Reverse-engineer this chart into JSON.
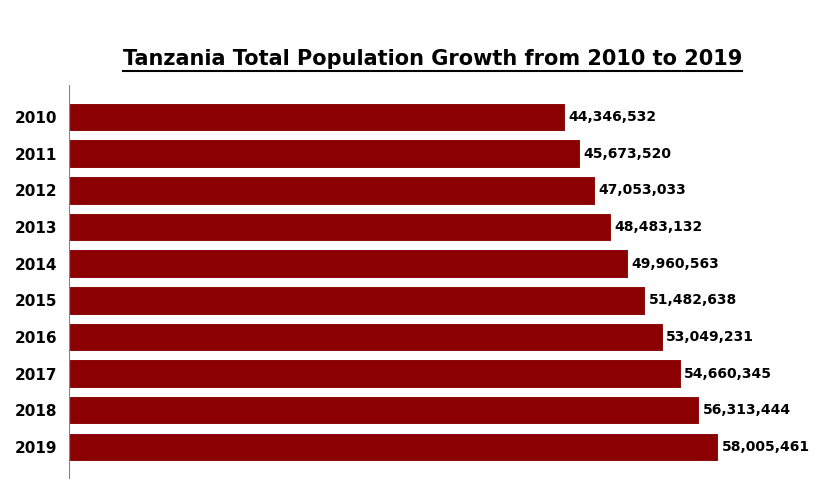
{
  "title": "Tanzania Total Population Growth from 2010 to 2019",
  "years": [
    "2010",
    "2011",
    "2012",
    "2013",
    "2014",
    "2015",
    "2016",
    "2017",
    "2018",
    "2019"
  ],
  "values": [
    44346532,
    45673520,
    47053033,
    48483132,
    49960563,
    51482638,
    53049231,
    54660345,
    56313444,
    58005461
  ],
  "labels": [
    "44,346,532",
    "45,673,520",
    "47,053,033",
    "48,483,132",
    "49,960,563",
    "51,482,638",
    "53,049,231",
    "54,660,345",
    "56,313,444",
    "58,005,461"
  ],
  "bar_color": "#8B0000",
  "background_color": "#ffffff",
  "title_fontsize": 15,
  "label_fontsize": 10,
  "year_fontsize": 11,
  "xlim": [
    0,
    65000000
  ]
}
